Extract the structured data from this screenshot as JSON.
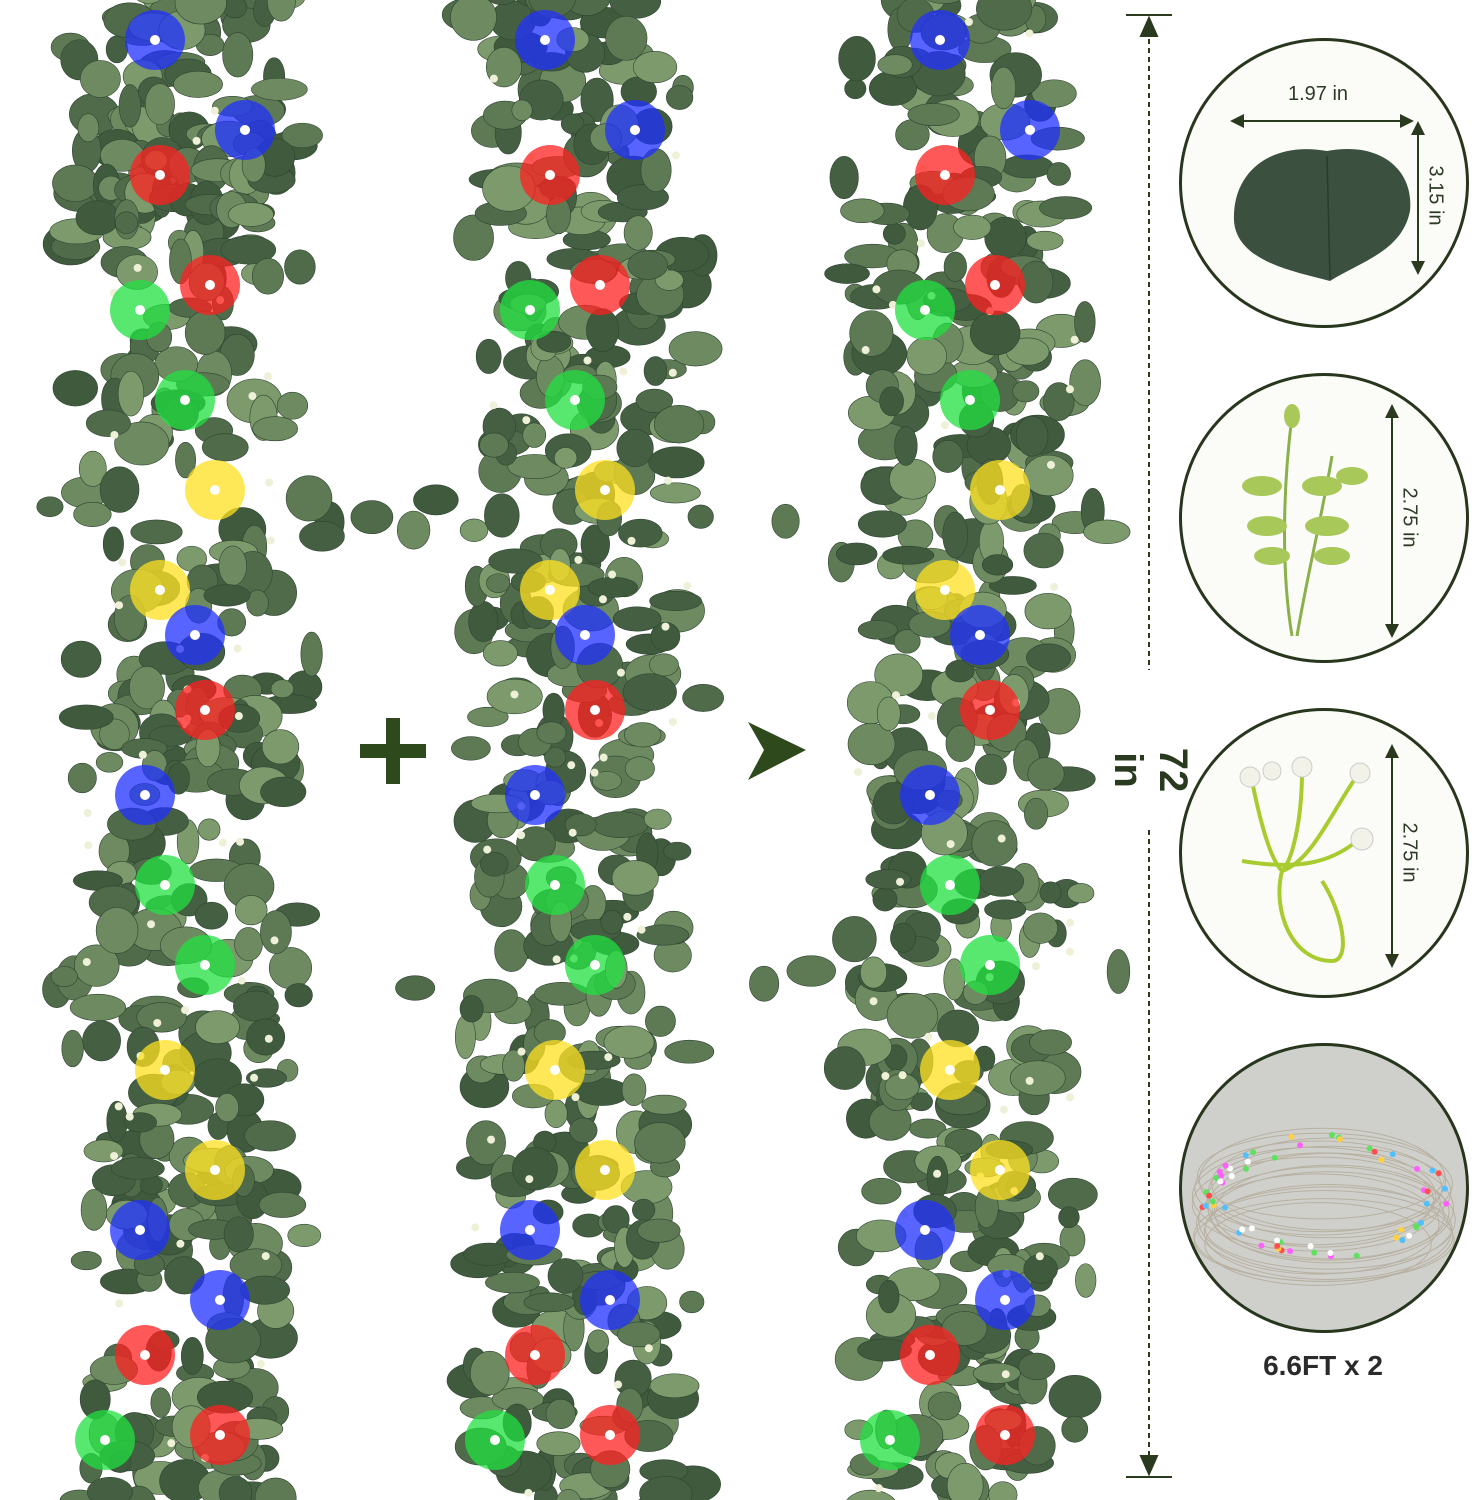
{
  "product": {
    "total_length_label": "72 in",
    "plus_symbol": "+",
    "arrow": "arrow-right-icon",
    "details": [
      {
        "item": "eucalyptus-leaf",
        "width_label": "1.97 in",
        "height_label": "3.15 in"
      },
      {
        "item": "eucalyptus-sprig",
        "height_label": "2.75 in"
      },
      {
        "item": "white-berry-stem",
        "height_label": "2.75 in"
      },
      {
        "item": "fairy-string-lights",
        "caption": "6.6FT x 2"
      }
    ],
    "colors": {
      "leaf": "#4f6b4a",
      "accent": "#2a3a1e",
      "light_red": "#ff2020",
      "light_green": "#20e040",
      "light_blue": "#2030ff",
      "light_yellow": "#ffe020"
    }
  }
}
